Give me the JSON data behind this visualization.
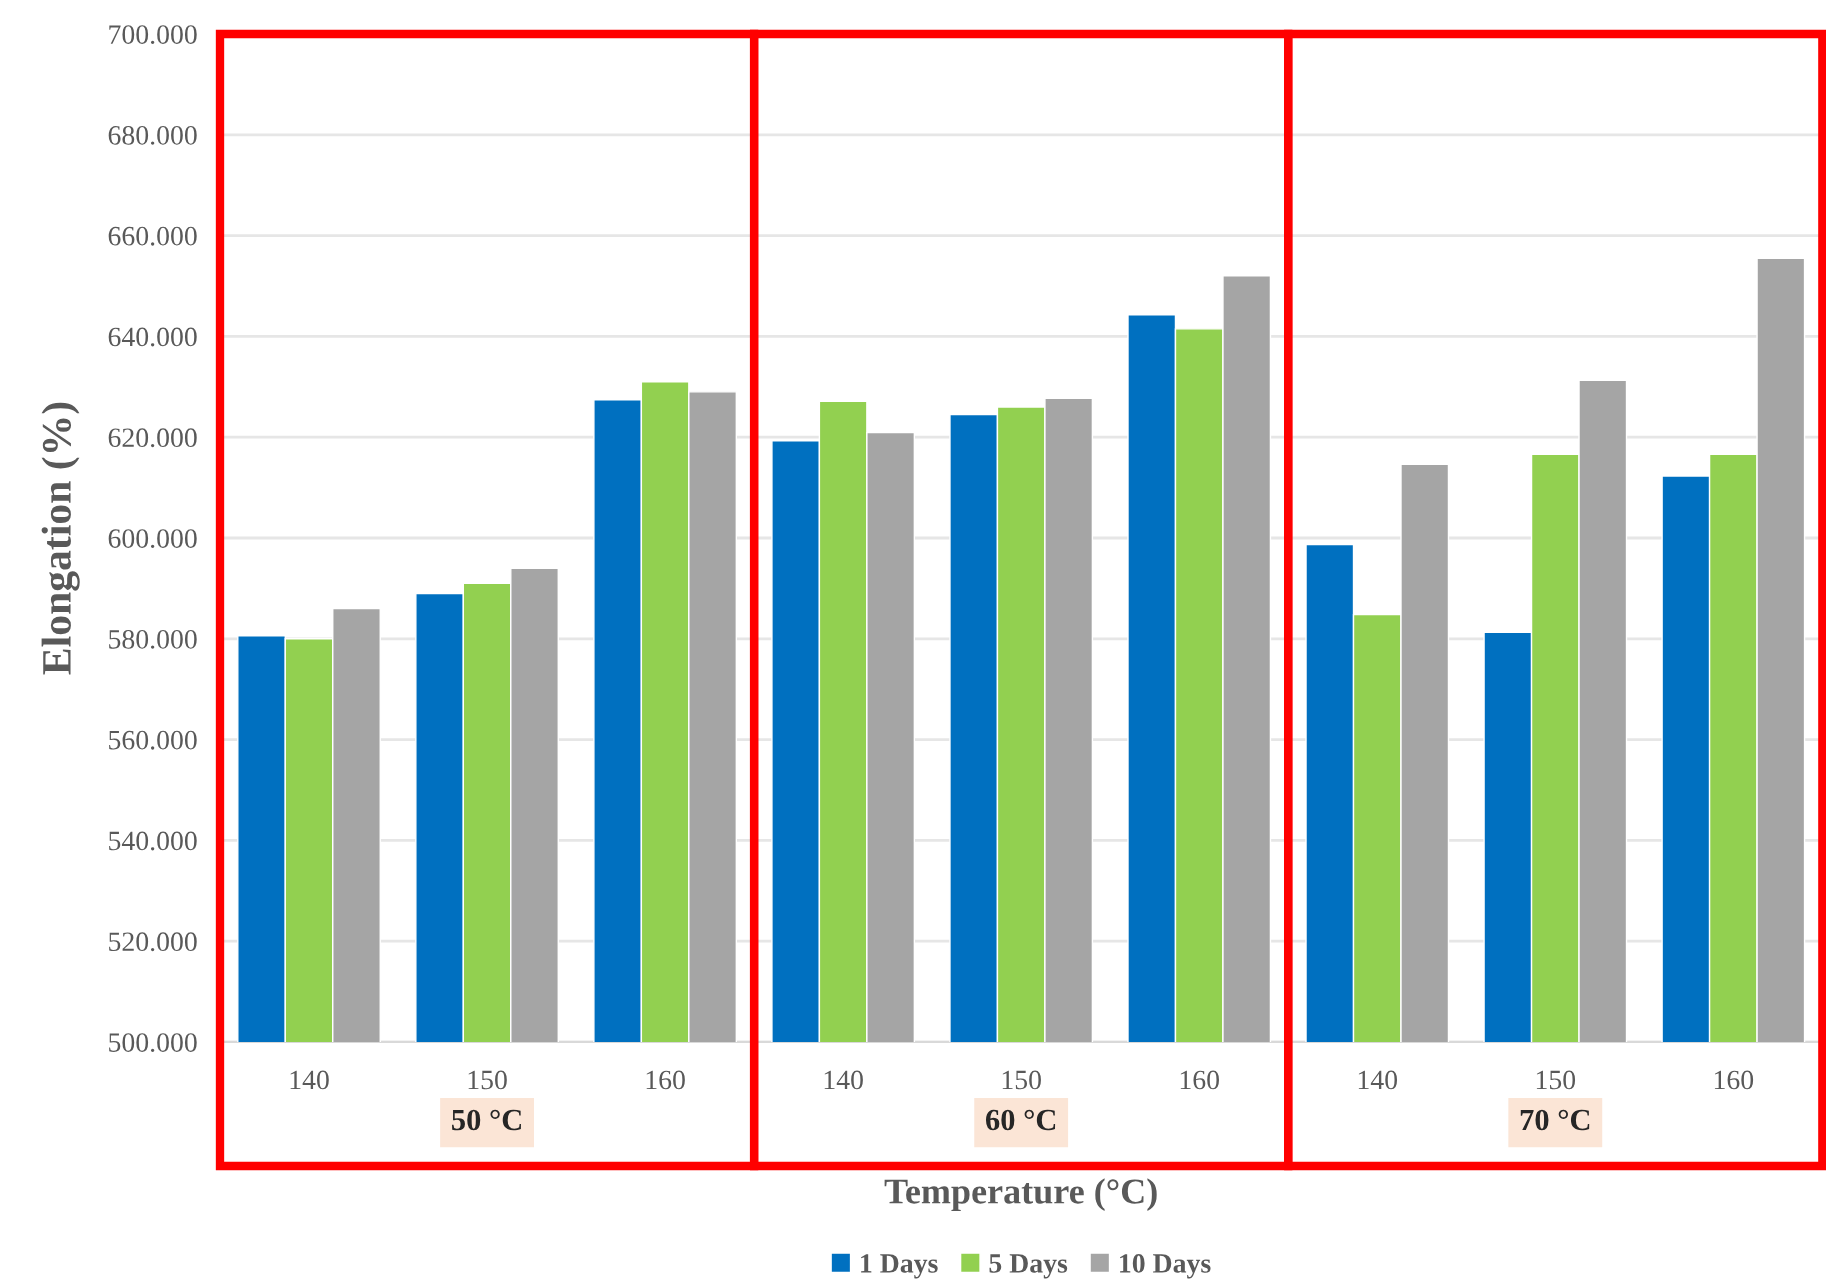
{
  "chart_data": {
    "type": "bar",
    "xlabel": "Temperature (°C)",
    "ylabel": "Elongation (%)",
    "categories": [
      "140",
      "150",
      "160",
      "140",
      "150",
      "160",
      "140",
      "150",
      "160"
    ],
    "series": [
      {
        "name": "1 Days",
        "color": "#0070c0",
        "values": [
          580.6,
          589,
          627.4,
          619.3,
          624.5,
          644.3,
          598.7,
          581.3,
          612.3
        ]
      },
      {
        "name": "5 Days",
        "color": "#92d050",
        "values": [
          580,
          591,
          631,
          627.1,
          626,
          641.5,
          584.8,
          616.6,
          616.6
        ]
      },
      {
        "name": "10 Days",
        "color": "#a5a5a5",
        "values": [
          586,
          594,
          629,
          620.9,
          627.7,
          652,
          614.6,
          631.3,
          655.5
        ]
      }
    ],
    "annotations": [
      "50 °C",
      "60 °C",
      "70 °C"
    ],
    "ylim": [
      500,
      700
    ],
    "yticks": [
      {
        "value": 500,
        "label": "500.000"
      },
      {
        "value": 520,
        "label": "520.000"
      },
      {
        "value": 540,
        "label": "540.000"
      },
      {
        "value": 560,
        "label": "560.000"
      },
      {
        "value": 580,
        "label": "580.000"
      },
      {
        "value": 600,
        "label": "600.000"
      },
      {
        "value": 620,
        "label": "620.000"
      },
      {
        "value": 640,
        "label": "640.000"
      },
      {
        "value": 660,
        "label": "660.000"
      },
      {
        "value": 680,
        "label": "680.000"
      },
      {
        "value": 700,
        "label": "700.000"
      }
    ],
    "grid": "y",
    "legend": "bottom"
  }
}
